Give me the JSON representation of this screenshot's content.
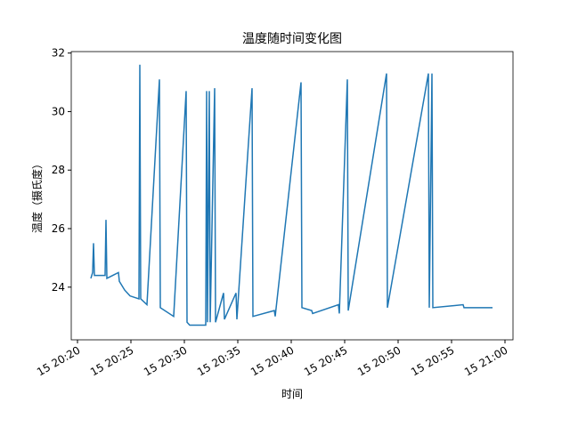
{
  "chart_data": {
    "type": "line",
    "title": "温度随时间变化图",
    "xlabel": "时间",
    "ylabel": "温度（摄氏度）",
    "x": [
      "15 20:21:15",
      "15 20:21:25",
      "15 20:21:30",
      "15 20:21:35",
      "15 20:22:35",
      "15 20:22:40",
      "15 20:22:45",
      "15 20:23:50",
      "15 20:23:55",
      "15 20:24:25",
      "15 20:24:55",
      "15 20:25:45",
      "15 20:25:50",
      "15 20:25:55",
      "15 20:26:30",
      "15 20:27:40",
      "15 20:27:45",
      "15 20:29:00",
      "15 20:30:10",
      "15 20:30:15",
      "15 20:30:30",
      "15 20:32:00",
      "15 20:32:05",
      "15 20:32:10",
      "15 20:32:20",
      "15 20:32:25",
      "15 20:32:50",
      "15 20:32:55",
      "15 20:33:40",
      "15 20:33:45",
      "15 20:34:50",
      "15 20:34:55",
      "15 20:36:20",
      "15 20:36:25",
      "15 20:38:25",
      "15 20:38:30",
      "15 20:40:55",
      "15 20:41:00",
      "15 20:41:55",
      "15 20:42:00",
      "15 20:44:25",
      "15 20:44:30",
      "15 20:45:15",
      "15 20:45:20",
      "15 20:48:55",
      "15 20:49:00",
      "15 20:52:50",
      "15 20:52:55",
      "15 20:53:10",
      "15 20:53:15",
      "15 20:56:05",
      "15 20:56:10",
      "15 20:58:50"
    ],
    "series": [
      {
        "name": "温度",
        "color": "#1f77b4",
        "values": [
          24.3,
          24.5,
          25.5,
          24.4,
          24.4,
          26.3,
          24.3,
          24.5,
          24.2,
          23.9,
          23.7,
          23.6,
          31.6,
          23.6,
          23.4,
          31.1,
          23.3,
          23.0,
          30.7,
          22.8,
          22.7,
          22.7,
          30.7,
          22.8,
          30.7,
          22.8,
          30.8,
          22.8,
          23.8,
          22.9,
          23.8,
          22.9,
          30.8,
          23.0,
          23.2,
          23.0,
          31.0,
          23.3,
          23.2,
          23.1,
          23.4,
          23.1,
          31.1,
          23.2,
          31.3,
          23.3,
          31.3,
          23.3,
          31.3,
          23.3,
          23.4,
          23.3,
          23.3
        ]
      }
    ],
    "xlim": [
      "15 20:19:25",
      "15 21:00:45"
    ],
    "xticks": [
      "15 20:20",
      "15 20:25",
      "15 20:30",
      "15 20:35",
      "15 20:40",
      "15 20:45",
      "15 20:50",
      "15 20:55",
      "15 21:00"
    ],
    "ylim": [
      22.2,
      32.05
    ],
    "yticks": [
      24,
      26,
      28,
      30,
      32
    ],
    "grid": false
  }
}
